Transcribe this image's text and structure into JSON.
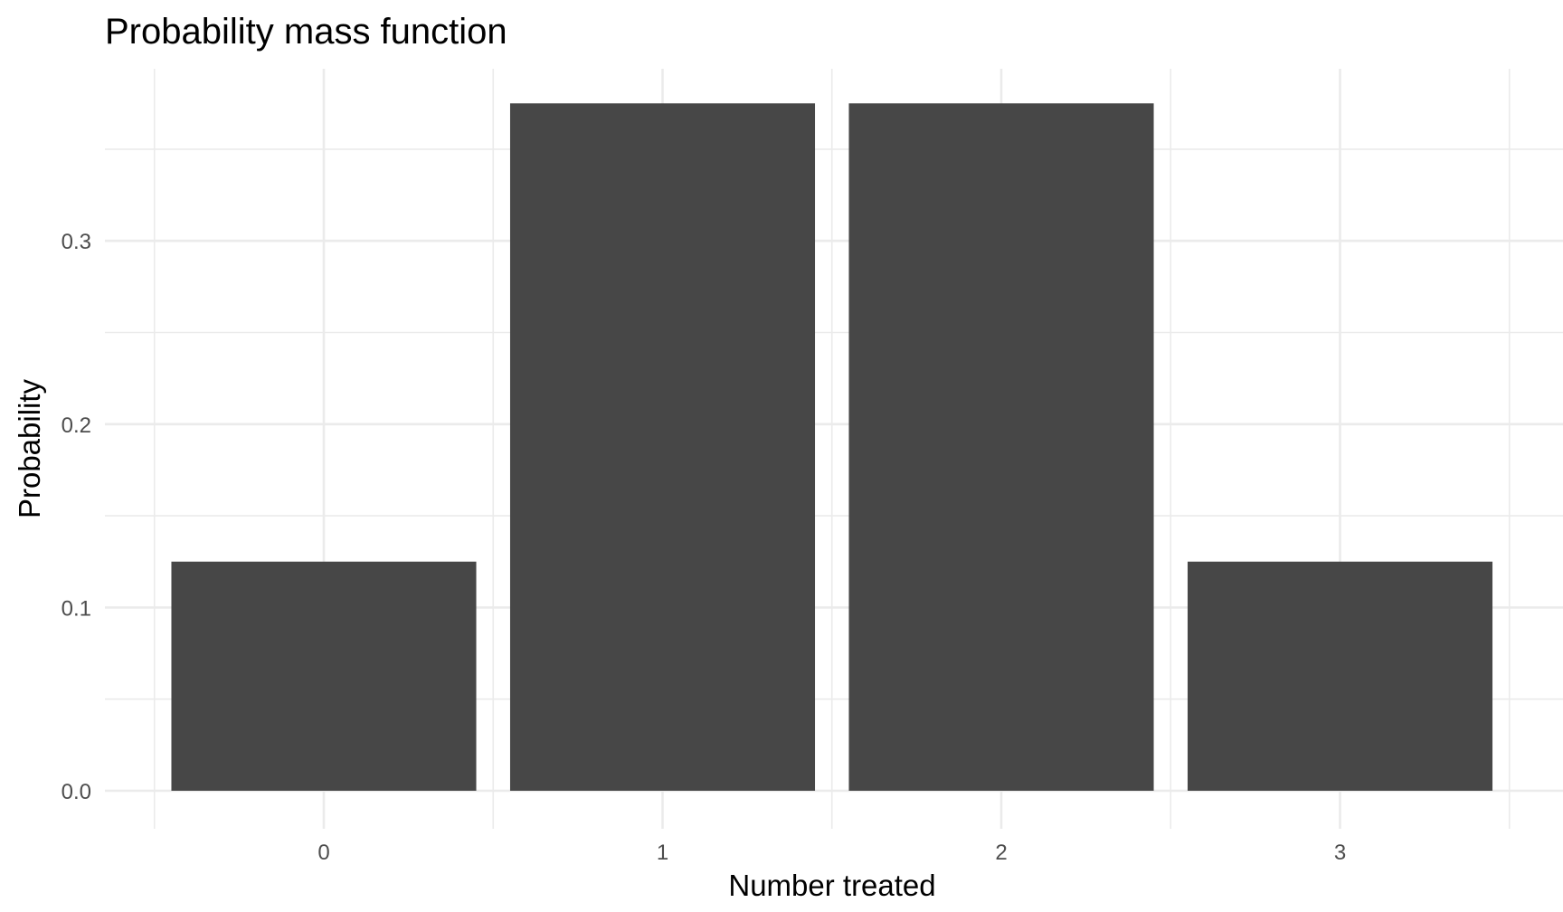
{
  "chart_data": {
    "type": "bar",
    "title": "Probability mass function",
    "xlabel": "Number treated",
    "ylabel": "Probability",
    "categories": [
      "0",
      "1",
      "2",
      "3"
    ],
    "values": [
      0.125,
      0.375,
      0.375,
      0.125
    ],
    "ylim": [
      0,
      0.375
    ],
    "yticks": [
      "0.0",
      "0.1",
      "0.2",
      "0.3"
    ],
    "grid": true,
    "legend": "none",
    "colors": {
      "bar": "#474747",
      "grid": "#ebebeb",
      "tick_text": "#4d4d4d",
      "text": "#000000",
      "background": "#ffffff"
    }
  }
}
